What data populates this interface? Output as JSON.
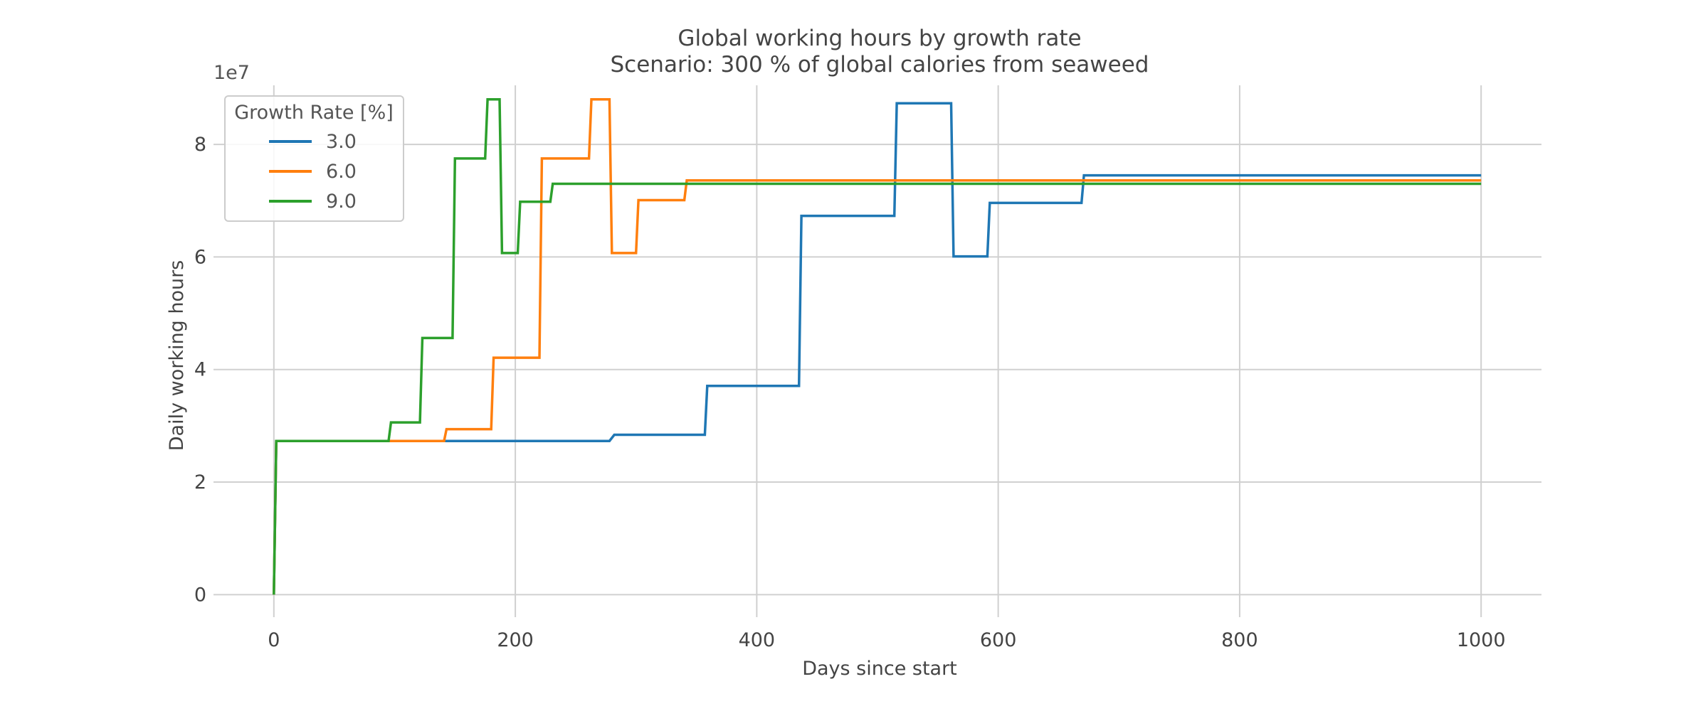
{
  "chart_data": {
    "type": "line",
    "title": "Global working hours by growth rate",
    "subtitle": "Scenario: 300 % of global calories from seaweed",
    "xlabel": "Days since start",
    "ylabel": "Daily working hours",
    "y_offset_label": "1e7",
    "xlim": [
      -50,
      1050
    ],
    "ylim": [
      -0.4,
      9.05
    ],
    "x_ticks": [
      0,
      200,
      400,
      600,
      800,
      1000
    ],
    "x_tick_labels": [
      "0",
      "200",
      "400",
      "600",
      "800",
      "1000"
    ],
    "y_ticks": [
      0,
      2,
      4,
      6,
      8
    ],
    "y_tick_labels": [
      "0",
      "2",
      "4",
      "6",
      "8"
    ],
    "grid": true,
    "legend": {
      "title": "Growth Rate [%]",
      "position": "top-left"
    },
    "y_units_note": "y values in units of 1e7 hours",
    "series": [
      {
        "name": "3.0",
        "color": "#1f77b4",
        "points": [
          [
            0,
            0
          ],
          [
            2,
            2.73
          ],
          [
            278,
            2.73
          ],
          [
            282,
            2.84
          ],
          [
            357,
            2.84
          ],
          [
            359,
            3.71
          ],
          [
            435,
            3.71
          ],
          [
            437,
            6.73
          ],
          [
            514,
            6.73
          ],
          [
            516,
            8.73
          ],
          [
            561,
            8.73
          ],
          [
            563,
            6.01
          ],
          [
            591,
            6.01
          ],
          [
            593,
            6.96
          ],
          [
            669,
            6.96
          ],
          [
            671,
            7.45
          ],
          [
            1000,
            7.45
          ]
        ]
      },
      {
        "name": "6.0",
        "color": "#ff7f0e",
        "points": [
          [
            0,
            0
          ],
          [
            2,
            2.73
          ],
          [
            141,
            2.73
          ],
          [
            143,
            2.94
          ],
          [
            180,
            2.94
          ],
          [
            182,
            4.21
          ],
          [
            220,
            4.21
          ],
          [
            222,
            7.75
          ],
          [
            261,
            7.75
          ],
          [
            263,
            8.8
          ],
          [
            278,
            8.8
          ],
          [
            280,
            6.07
          ],
          [
            300,
            6.07
          ],
          [
            302,
            7.01
          ],
          [
            340,
            7.01
          ],
          [
            342,
            7.36
          ],
          [
            1000,
            7.36
          ]
        ]
      },
      {
        "name": "9.0",
        "color": "#2ca02c",
        "points": [
          [
            0,
            0
          ],
          [
            2,
            2.73
          ],
          [
            95,
            2.73
          ],
          [
            97,
            3.06
          ],
          [
            121,
            3.06
          ],
          [
            123,
            4.56
          ],
          [
            148,
            4.56
          ],
          [
            150,
            7.75
          ],
          [
            175,
            7.75
          ],
          [
            177,
            8.8
          ],
          [
            187,
            8.8
          ],
          [
            189,
            6.07
          ],
          [
            202,
            6.07
          ],
          [
            204,
            6.98
          ],
          [
            229,
            6.98
          ],
          [
            231,
            7.3
          ],
          [
            1000,
            7.3
          ]
        ]
      }
    ]
  }
}
